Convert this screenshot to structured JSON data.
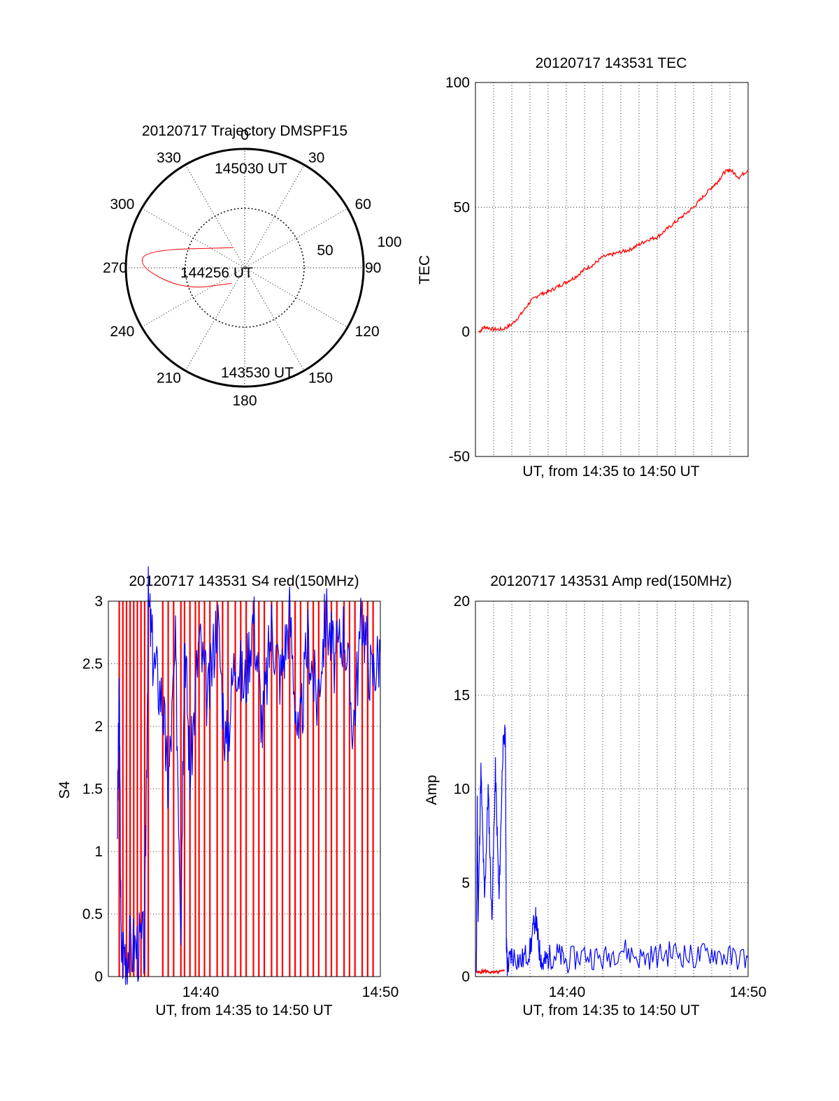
{
  "colors": {
    "red": "#ff0000",
    "blue": "#0000ff",
    "axis": "#000000",
    "grid": "#000000"
  },
  "chart_data": [
    {
      "type": "polar",
      "title": "20120717 Trajectory DMSPF15",
      "azimuth_labels": [
        "0",
        "30",
        "60",
        "90",
        "120",
        "150",
        "180",
        "210",
        "240",
        "270",
        "300",
        "330"
      ],
      "radial_labels": [
        "50",
        "100"
      ],
      "elevation_rings": [
        50,
        100
      ],
      "track": {
        "color": "red",
        "points": [
          {
            "az": 330,
            "el": 82,
            "time": "145030 UT"
          },
          {
            "az": 280,
            "el": 55,
            "time": "144256 UT"
          },
          {
            "az": 270,
            "el": 54
          },
          {
            "az": 250,
            "el": 68
          },
          {
            "az": 220,
            "el": 83,
            "time": "143530 UT"
          }
        ]
      },
      "annotations": [
        "145030 UT",
        "144256 UT",
        "143530 UT"
      ]
    },
    {
      "type": "line",
      "title": "20120717 143531 TEC",
      "xlabel": "UT, from 14:35 to 14:50 UT",
      "ylabel": "TEC",
      "xlim": [
        0,
        15
      ],
      "ylim": [
        -50,
        100
      ],
      "yticks": [
        "100",
        "50",
        "0",
        "-50"
      ],
      "grid": true,
      "series": [
        {
          "color": "red",
          "x": [
            0.2,
            0.5,
            1.0,
            1.5,
            2.0,
            2.5,
            3.0,
            3.5,
            4.0,
            4.5,
            5.0,
            5.5,
            6.0,
            6.5,
            7.0,
            7.5,
            8.0,
            8.5,
            9.0,
            9.5,
            10.0,
            10.5,
            11.0,
            11.5,
            12.0,
            12.5,
            13.0,
            13.3,
            13.7,
            14.0,
            14.5,
            15.0
          ],
          "y": [
            0,
            2,
            1,
            1,
            3,
            7,
            12,
            15,
            16,
            18,
            20,
            22,
            25,
            27,
            30,
            31,
            32,
            33,
            35,
            37,
            38,
            41,
            44,
            47,
            50,
            54,
            58,
            60,
            64,
            65,
            62,
            65
          ]
        }
      ]
    },
    {
      "type": "line",
      "title": "20120717 143531 S4 red(150MHz)",
      "xlabel": "UT, from 14:35 to 14:50 UT",
      "ylabel": "S4",
      "xlim": [
        0,
        15
      ],
      "ylim": [
        0,
        3
      ],
      "yticks": [
        "3",
        "2.5",
        "2",
        "1.5",
        "1",
        "0.5",
        "0"
      ],
      "xticks": [
        "14:40",
        "14:50"
      ],
      "grid": true,
      "series": [
        {
          "color": "red",
          "x": [
            0.6,
            0.8,
            1.0,
            1.2,
            1.4,
            1.6,
            1.8,
            2.0,
            2.2,
            3.0,
            3.3,
            3.6,
            4.0,
            4.2,
            4.5,
            4.8,
            5.0,
            5.3,
            5.6,
            6.0,
            6.3,
            6.6,
            7.0,
            7.3,
            7.6,
            8.0,
            8.3,
            8.6,
            9.0,
            9.3,
            9.6,
            10.0,
            10.3,
            10.6,
            11.0,
            11.3,
            11.6,
            12.0,
            12.3,
            12.6,
            13.0,
            13.3,
            13.6,
            14.0,
            14.3,
            14.6
          ],
          "y": [
            3,
            0,
            3,
            0,
            3,
            0,
            3,
            0,
            3,
            3,
            0,
            3,
            0,
            3,
            0,
            3,
            0,
            3,
            0,
            3,
            0,
            3,
            0,
            3,
            0,
            3,
            0,
            3,
            0,
            3,
            0,
            3,
            0,
            3,
            0,
            3,
            0,
            3,
            0,
            3,
            0,
            3,
            0,
            3,
            0,
            3
          ]
        },
        {
          "color": "blue",
          "x": [
            0.5,
            0.6,
            0.7,
            1.0,
            1.5,
            2.0,
            2.2,
            2.5,
            3.0,
            3.3,
            3.7,
            4.0,
            4.2,
            4.5,
            5.0,
            5.5,
            6.0,
            6.5,
            7.0,
            7.5,
            8.0,
            8.5,
            9.0,
            9.5,
            10.0,
            10.5,
            11.0,
            11.5,
            12.0,
            12.5,
            13.0,
            13.5,
            14.0,
            14.5,
            15.0
          ],
          "y": [
            1.2,
            2.3,
            0.22,
            0.22,
            0.24,
            0.25,
            3.0,
            2.5,
            2.2,
            1.5,
            2.6,
            0.5,
            2.8,
            1.6,
            2.7,
            2.2,
            2.9,
            1.8,
            2.6,
            2.3,
            2.9,
            2.0,
            2.8,
            2.4,
            2.9,
            1.8,
            2.7,
            2.2,
            2.9,
            2.5,
            2.8,
            2.0,
            2.9,
            2.4,
            2.6
          ]
        }
      ]
    },
    {
      "type": "line",
      "title": "20120717 143531 Amp red(150MHz)",
      "xlabel": "UT, from 14:35 to 14:50 UT",
      "ylabel": "Amp",
      "xlim": [
        0,
        15
      ],
      "ylim": [
        0,
        20
      ],
      "yticks": [
        "20",
        "15",
        "10",
        "5",
        "0"
      ],
      "xticks": [
        "14:40",
        "14:50"
      ],
      "grid": true,
      "series": [
        {
          "color": "blue",
          "x": [
            0.05,
            0.1,
            0.15,
            0.3,
            0.5,
            0.7,
            0.9,
            1.1,
            1.3,
            1.5,
            1.65,
            1.7,
            1.75,
            2.0,
            2.5,
            3.0,
            3.3,
            3.5,
            3.7,
            4.0,
            4.5,
            5.0,
            6.0,
            7.0,
            8.0,
            9.0,
            10.0,
            11.0,
            12.0,
            13.0,
            14.0,
            15.0
          ],
          "y": [
            0,
            9,
            3,
            11,
            4,
            10,
            3,
            11,
            4,
            12,
            13,
            2,
            0.5,
            1.2,
            0.8,
            1.4,
            3.2,
            1.5,
            0.6,
            1.0,
            1.2,
            0.8,
            1.2,
            0.9,
            1.5,
            1.0,
            1.1,
            1.3,
            1.0,
            1.3,
            1.0,
            1.0
          ]
        },
        {
          "color": "red",
          "x": [
            0.1,
            0.5,
            1.0,
            1.6
          ],
          "y": [
            0.2,
            0.3,
            0.2,
            0.3
          ]
        }
      ]
    }
  ]
}
